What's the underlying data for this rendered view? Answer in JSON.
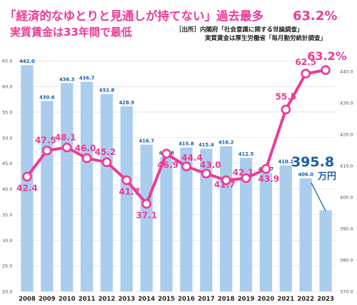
{
  "header": {
    "title_main": "「経済的なゆとりと見通しが持てない」過去最多",
    "title_highlight": "63.2%",
    "subtitle": "実質賃金は33年間で最低",
    "source_line1": "［出所］内閣府「社会意識に関する世論調査」",
    "source_line2": "実質賃金は厚生労働省「毎月勤労統計調査」"
  },
  "chart_data": {
    "type": "bar+line",
    "categories": [
      "2008",
      "2009",
      "2010",
      "2011",
      "2012",
      "2013",
      "2014",
      "2015",
      "2016",
      "2017",
      "2018",
      "2019",
      "2020",
      "2021",
      "2022",
      "2023"
    ],
    "bars": {
      "values": [
        442.0,
        430.6,
        436.3,
        436.7,
        432.8,
        428.9,
        416.7,
        412.8,
        415.8,
        415.4,
        416.2,
        412.5,
        407.7,
        410.1,
        406.0,
        395.8
      ],
      "labels": [
        "442.0",
        "430.6",
        "436.3",
        "436.7",
        "432.8",
        "428.9",
        "416.7",
        "412.8",
        "415.8",
        "415.4",
        "416.2",
        "412.5",
        "407.7",
        "410.1",
        "406.0",
        ""
      ],
      "axis": "right",
      "ylim": [
        370,
        445
      ],
      "ticks": [
        "370.0",
        "380.0",
        "390.0",
        "400.0",
        "410.0",
        "420.0",
        "430.0",
        "440.0"
      ],
      "color": "#aacdee"
    },
    "line": {
      "values": [
        42.4,
        47.5,
        48.1,
        46.0,
        45.2,
        41.7,
        37.1,
        46.9,
        44.4,
        43.0,
        41.7,
        42.1,
        43.9,
        55.5,
        62.5,
        63.2
      ],
      "labels": [
        "42.4",
        "47.5",
        "48.1",
        "46.0",
        "45.2",
        "41.7",
        "37.1",
        "46.9",
        "44.4",
        "43.0",
        "41.7",
        "42.1",
        "43.9",
        "55.5",
        "62.5",
        "63.2%"
      ],
      "axis": "left",
      "ylim": [
        20,
        66
      ],
      "ticks": [
        "20.0",
        "25.0",
        "30.0",
        "35.0",
        "40.0",
        "45.0",
        "50.0",
        "55.0",
        "60.0",
        "65.0"
      ],
      "color": "#ee3a95"
    },
    "callout": {
      "value": "395.8",
      "unit": "万円"
    }
  }
}
